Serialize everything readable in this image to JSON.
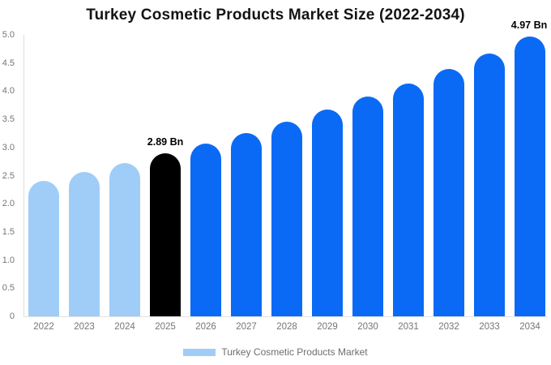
{
  "page": {
    "background": "#FFFFFF"
  },
  "chart_data": {
    "type": "bar",
    "title": "Turkey Cosmetic Products Market Size (2022-2034)",
    "unit": "Bn",
    "categories": [
      "2022",
      "2023",
      "2024",
      "2025",
      "2026",
      "2027",
      "2028",
      "2029",
      "2030",
      "2031",
      "2032",
      "2033",
      "2034"
    ],
    "values": [
      2.41,
      2.56,
      2.72,
      2.89,
      3.07,
      3.26,
      3.46,
      3.67,
      3.9,
      4.14,
      4.4,
      4.67,
      4.97
    ],
    "bar_colors": [
      "#9FCDF8",
      "#9FCDF8",
      "#9FCDF8",
      "#000000",
      "#0A6AF5",
      "#0A6AF5",
      "#0A6AF5",
      "#0A6AF5",
      "#0A6AF5",
      "#0A6AF5",
      "#0A6AF5",
      "#0A6AF5",
      "#0A6AF5"
    ],
    "annotations": [
      {
        "category": "2025",
        "text": "2.89 Bn"
      },
      {
        "category": "2034",
        "text": "4.97 Bn"
      }
    ],
    "xlabel": "",
    "ylabel": "",
    "ylim": [
      0,
      5
    ],
    "y_ticks": [
      {
        "value": 5.0,
        "label": "5.0"
      },
      {
        "value": 4.5,
        "label": "4.5"
      },
      {
        "value": 4.0,
        "label": "4.0"
      },
      {
        "value": 3.5,
        "label": "3.5"
      },
      {
        "value": 3.0,
        "label": "3.0"
      },
      {
        "value": 2.5,
        "label": "2.5"
      },
      {
        "value": 2.0,
        "label": "2.0"
      },
      {
        "value": 1.5,
        "label": "1.5"
      },
      {
        "value": 1.0,
        "label": "1.0"
      },
      {
        "value": 0.5,
        "label": "0.5"
      },
      {
        "value": 0.0,
        "label": "0"
      }
    ],
    "grid": false,
    "legend_position": "bottom"
  },
  "legend": {
    "label": "Turkey Cosmetic Products Market",
    "swatch_color": "#9FCDF8"
  },
  "colors": {
    "historical_bar": "#9FCDF8",
    "base_year_bar": "#000000",
    "forecast_bar": "#0A6AF5",
    "axis_line": "#DDDDDD",
    "tick_text": "#757575",
    "legend_text": "#6E6E6E",
    "title_text": "#141414",
    "annotation_text": "#000000"
  }
}
